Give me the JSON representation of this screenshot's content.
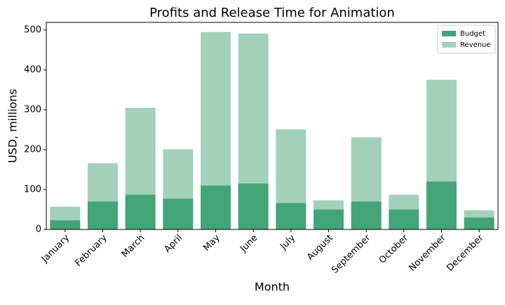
{
  "chart_data": {
    "type": "bar",
    "barmode": "overlay",
    "title": "Profits and Release Time for Animation",
    "x_label": "Month",
    "y_label": "USD, millions",
    "categories": [
      "January",
      "February",
      "March",
      "April",
      "May",
      "June",
      "July",
      "August",
      "September",
      "October",
      "November",
      "December"
    ],
    "series": [
      {
        "name": "Budget",
        "color": "#43a577",
        "values": [
          23,
          70,
          87,
          77,
          110,
          115,
          66,
          50,
          70,
          50,
          120,
          30
        ]
      },
      {
        "name": "Revenue",
        "color": "#a2d0bb",
        "values": [
          57,
          166,
          305,
          201,
          495,
          491,
          251,
          73,
          231,
          87,
          375,
          48
        ]
      }
    ],
    "ylim": [
      0,
      519
    ],
    "yticks": [
      0,
      100,
      200,
      300,
      400,
      500
    ],
    "legend": "upper right"
  }
}
